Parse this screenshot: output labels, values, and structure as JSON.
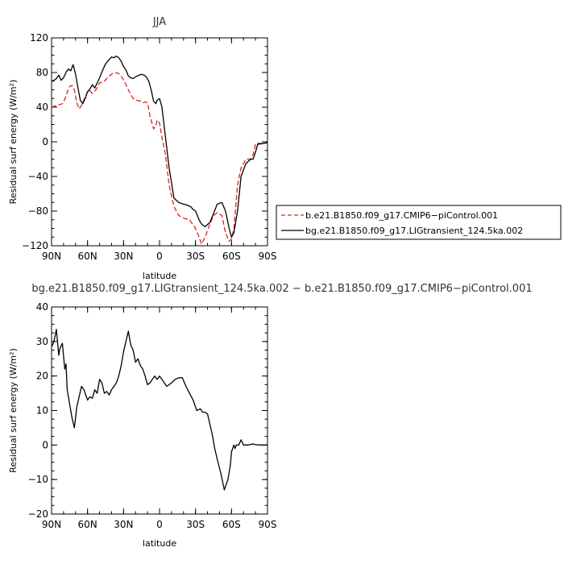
{
  "chart_data": [
    {
      "type": "line",
      "title": "JJA",
      "xlabel": "latitude",
      "ylabel": "Residual surf energy (W/m²)",
      "x_ticks": [
        90,
        60,
        30,
        0,
        -30,
        -60,
        -90
      ],
      "x_tick_labels": [
        "90N",
        "60N",
        "30N",
        "0",
        "30S",
        "60S",
        "90S"
      ],
      "xlim": [
        90,
        -90
      ],
      "ylim": [
        -120,
        120
      ],
      "y_ticks": [
        120,
        80,
        40,
        0,
        -40,
        -80,
        -120
      ],
      "y_tick_labels": [
        "120",
        "80",
        "40",
        "0",
        "−40",
        "−80",
        "−120"
      ],
      "legend_position": "right",
      "series": [
        {
          "name": "b.e21.B1850.f09_g17.CMIP6−piControl.001",
          "color": "#e02020",
          "dash": "dashed",
          "x": [
            90,
            86,
            83,
            81,
            79,
            77,
            75,
            73,
            71,
            69,
            67,
            65,
            62,
            59,
            56,
            53,
            50,
            46,
            42,
            38,
            34,
            30,
            26,
            22,
            19,
            16,
            14,
            12,
            10,
            8,
            5,
            3,
            2,
            0,
            -2,
            -5,
            -8,
            -12,
            -16,
            -20,
            -25,
            -30,
            -33,
            -35,
            -38,
            -42,
            -45,
            -48,
            -52,
            -55,
            -58,
            -60,
            -62,
            -65,
            -68,
            -72,
            -76,
            -78,
            -80,
            -82,
            -86,
            -90
          ],
          "y": [
            40,
            42,
            43,
            44,
            49,
            57,
            64,
            65,
            60,
            45,
            38,
            42,
            52,
            60,
            56,
            60,
            68,
            70,
            76,
            80,
            79,
            72,
            60,
            50,
            48,
            47,
            45,
            46,
            45,
            30,
            15,
            18,
            25,
            22,
            5,
            -15,
            -50,
            -75,
            -85,
            -88,
            -90,
            -100,
            -110,
            -118,
            -110,
            -95,
            -85,
            -82,
            -85,
            -105,
            -115,
            -112,
            -100,
            -50,
            -30,
            -20,
            -20,
            -15,
            -3,
            -3,
            -2,
            -1
          ]
        },
        {
          "name": "bg.e21.B1850.f09_g17.LIGtransient_124.5ka.002",
          "color": "#000000",
          "dash": "solid",
          "x": [
            90,
            88,
            86,
            84,
            82,
            80,
            78,
            76,
            74,
            72,
            70,
            68,
            66,
            64,
            62,
            60,
            58,
            56,
            54,
            52,
            50,
            47,
            45,
            42,
            40,
            38,
            36,
            34,
            32,
            30,
            28,
            26,
            24,
            22,
            20,
            17,
            15,
            13,
            11,
            9,
            7,
            5,
            3,
            2,
            0,
            -2,
            -5,
            -8,
            -12,
            -16,
            -20,
            -23,
            -26,
            -28,
            -30,
            -33,
            -35,
            -38,
            -42,
            -45,
            -48,
            -52,
            -55,
            -58,
            -60,
            -62,
            -65,
            -68,
            -72,
            -76,
            -78,
            -80,
            -82,
            -86,
            -90
          ],
          "y": [
            70,
            71,
            73,
            77,
            71,
            74,
            80,
            84,
            82,
            89,
            78,
            62,
            48,
            44,
            50,
            58,
            61,
            66,
            62,
            68,
            74,
            84,
            90,
            95,
            98,
            97,
            99,
            97,
            93,
            87,
            83,
            76,
            74,
            73,
            75,
            77,
            78,
            77,
            75,
            70,
            60,
            47,
            44,
            48,
            50,
            40,
            5,
            -30,
            -65,
            -70,
            -72,
            -73,
            -75,
            -78,
            -80,
            -90,
            -95,
            -98,
            -93,
            -83,
            -72,
            -70,
            -80,
            -100,
            -110,
            -105,
            -80,
            -40,
            -25,
            -20,
            -20,
            -12,
            -2,
            -2,
            -1
          ]
        }
      ]
    },
    {
      "type": "line",
      "title": "bg.e21.B1850.f09_g17.LIGtransient_124.5ka.002 − b.e21.B1850.f09_g17.CMIP6−piControl.001",
      "xlabel": "latitude",
      "ylabel": "Residual surf energy (W/m²)",
      "x_ticks": [
        90,
        60,
        30,
        0,
        -30,
        -60,
        -90
      ],
      "x_tick_labels": [
        "90N",
        "60N",
        "30N",
        "0",
        "30S",
        "60S",
        "90S"
      ],
      "xlim": [
        90,
        -90
      ],
      "ylim": [
        -20,
        40
      ],
      "y_ticks": [
        40,
        30,
        20,
        10,
        0,
        -10,
        -20
      ],
      "y_tick_labels": [
        "40",
        "30",
        "20",
        "10",
        "0",
        "−10",
        "−20"
      ],
      "series": [
        {
          "name": "",
          "color": "#000000",
          "dash": "solid",
          "x": [
            90,
            88,
            86,
            84,
            83,
            81,
            79,
            78,
            77,
            75,
            73,
            71,
            69,
            67,
            65,
            63,
            60,
            58,
            56,
            54,
            52,
            50,
            48,
            46,
            44,
            42,
            40,
            38,
            36,
            34,
            32,
            30,
            28,
            26,
            24,
            22,
            20,
            18,
            16,
            14,
            12,
            10,
            8,
            6,
            4,
            2,
            0,
            -2,
            -4,
            -6,
            -8,
            -10,
            -13,
            -16,
            -19,
            -22,
            -25,
            -28,
            -31,
            -34,
            -36,
            -38,
            -40,
            -42,
            -44,
            -46,
            -48,
            -51,
            -54,
            -57,
            -59,
            -60,
            -61,
            -62,
            -63,
            -64,
            -66,
            -68,
            -70,
            -72,
            -74,
            -76,
            -78,
            -80,
            -84,
            -90
          ],
          "y": [
            28.5,
            30,
            33.5,
            26,
            28,
            29.5,
            22,
            23.5,
            16,
            12,
            8,
            5,
            11,
            14,
            17,
            16,
            13,
            14,
            13.5,
            16,
            15,
            19,
            18,
            15,
            15.5,
            14.5,
            16,
            17,
            18,
            20,
            23,
            27,
            30,
            33,
            29,
            27.5,
            24,
            25,
            23,
            22,
            20,
            17.5,
            18,
            19,
            20,
            19,
            20,
            19,
            18,
            17,
            17.5,
            18,
            19,
            19.5,
            19.5,
            17,
            15,
            13,
            10,
            10.5,
            9.5,
            9.5,
            9,
            6,
            3,
            -1,
            -4,
            -8,
            -13,
            -10,
            -6,
            -2,
            -1,
            0,
            -1,
            0,
            0,
            1.5,
            0,
            0,
            0,
            0.2,
            0.3,
            0.1,
            0,
            0
          ]
        }
      ]
    }
  ]
}
